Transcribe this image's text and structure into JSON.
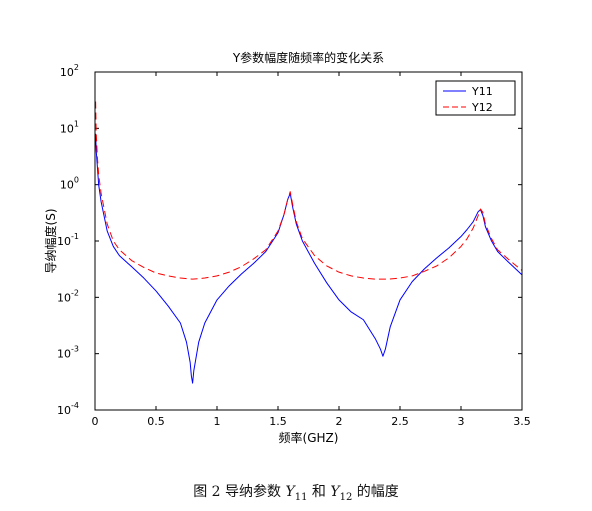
{
  "chart_data": {
    "type": "line",
    "title": "Y参数幅度随频率的变化关系",
    "xlabel": "频率(GHZ)",
    "ylabel": "导纳幅度(S)",
    "xlim": [
      0,
      3.5
    ],
    "ylim": [
      0.0001,
      100
    ],
    "yscale": "log",
    "xticks": [
      "0",
      "0.5",
      "1",
      "1.5",
      "2",
      "2.5",
      "3",
      "3.5"
    ],
    "yticks": [
      {
        "base": "10",
        "exp": "-4"
      },
      {
        "base": "10",
        "exp": "-3"
      },
      {
        "base": "10",
        "exp": "-2"
      },
      {
        "base": "10",
        "exp": "-1"
      },
      {
        "base": "10",
        "exp": "0"
      },
      {
        "base": "10",
        "exp": "1"
      },
      {
        "base": "10",
        "exp": "2"
      }
    ],
    "grid": false,
    "legend": "top-right",
    "series": [
      {
        "name": "Y11",
        "color": "#0000ff",
        "style": "solid",
        "x": [
          0.005,
          0.01,
          0.02,
          0.03,
          0.05,
          0.1,
          0.15,
          0.2,
          0.3,
          0.4,
          0.5,
          0.6,
          0.7,
          0.75,
          0.78,
          0.79,
          0.8,
          0.81,
          0.85,
          0.9,
          1.0,
          1.1,
          1.2,
          1.3,
          1.4,
          1.5,
          1.55,
          1.58,
          1.6,
          1.62,
          1.65,
          1.7,
          1.8,
          1.9,
          2.0,
          2.1,
          2.2,
          2.3,
          2.34,
          2.36,
          2.38,
          2.42,
          2.5,
          2.6,
          2.7,
          2.8,
          2.9,
          3.0,
          3.05,
          3.1,
          3.14,
          3.16,
          3.18,
          3.2,
          3.25,
          3.3,
          3.4,
          3.5
        ],
        "values": [
          8,
          4,
          2,
          1.0,
          0.5,
          0.15,
          0.08,
          0.055,
          0.035,
          0.022,
          0.013,
          0.007,
          0.0035,
          0.0016,
          0.0007,
          0.0004,
          0.0003,
          0.0005,
          0.0016,
          0.0035,
          0.009,
          0.016,
          0.026,
          0.04,
          0.065,
          0.14,
          0.3,
          0.55,
          0.7,
          0.4,
          0.2,
          0.1,
          0.04,
          0.018,
          0.009,
          0.0055,
          0.004,
          0.0018,
          0.0012,
          0.0009,
          0.0012,
          0.003,
          0.009,
          0.019,
          0.032,
          0.05,
          0.075,
          0.12,
          0.16,
          0.22,
          0.33,
          0.36,
          0.28,
          0.18,
          0.1,
          0.065,
          0.04,
          0.025
        ]
      },
      {
        "name": "Y12",
        "color": "#ff0000",
        "style": "dashed",
        "x": [
          0.005,
          0.01,
          0.02,
          0.03,
          0.05,
          0.1,
          0.15,
          0.2,
          0.3,
          0.4,
          0.5,
          0.6,
          0.7,
          0.8,
          0.9,
          1.0,
          1.1,
          1.2,
          1.3,
          1.4,
          1.5,
          1.55,
          1.58,
          1.6,
          1.62,
          1.65,
          1.7,
          1.8,
          1.9,
          2.0,
          2.1,
          2.2,
          2.3,
          2.4,
          2.5,
          2.6,
          2.7,
          2.8,
          2.9,
          3.0,
          3.05,
          3.1,
          3.14,
          3.16,
          3.18,
          3.2,
          3.25,
          3.3,
          3.4,
          3.5
        ],
        "values": [
          30,
          8,
          3,
          1.5,
          0.7,
          0.2,
          0.1,
          0.07,
          0.045,
          0.034,
          0.027,
          0.024,
          0.022,
          0.021,
          0.022,
          0.024,
          0.028,
          0.035,
          0.048,
          0.07,
          0.15,
          0.3,
          0.55,
          0.75,
          0.45,
          0.22,
          0.11,
          0.055,
          0.036,
          0.028,
          0.024,
          0.022,
          0.021,
          0.021,
          0.022,
          0.024,
          0.029,
          0.036,
          0.05,
          0.08,
          0.11,
          0.17,
          0.28,
          0.37,
          0.32,
          0.2,
          0.11,
          0.07,
          0.045,
          0.03
        ]
      }
    ]
  },
  "caption": {
    "prefix": "图 2  导纳参数 ",
    "v1": "Y",
    "sub1": "11",
    "mid": " 和 ",
    "v2": "Y",
    "sub2": "12",
    "suffix": " 的幅度"
  }
}
